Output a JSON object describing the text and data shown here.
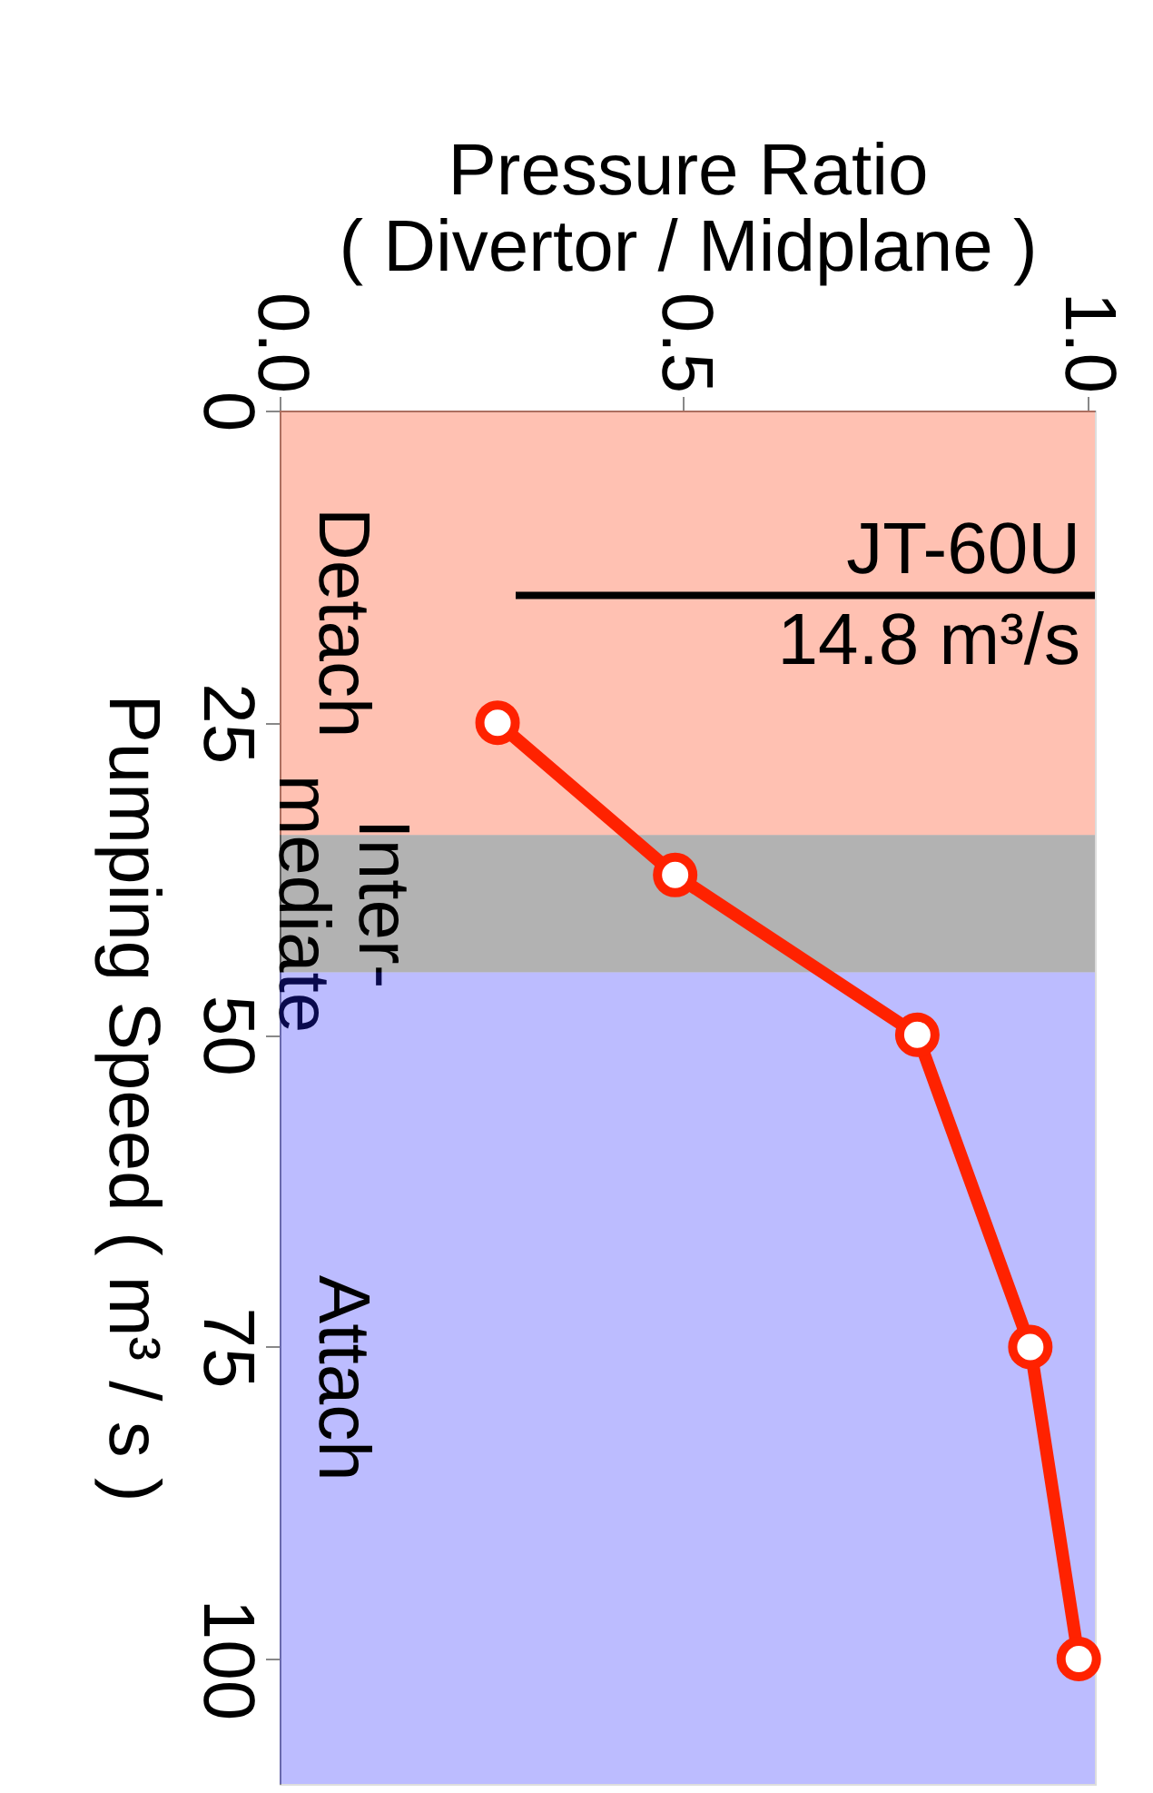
{
  "chart_data": {
    "type": "line",
    "orientation": "horizontal",
    "xlabel": "Pressure Ratio\n( Divertor / Midplane )",
    "ylabel": "Pumping Speed ( m³ / s )",
    "x": [
      25,
      37.2,
      50,
      75,
      100
    ],
    "series": [
      {
        "color": "#ff2200",
        "values": [
          0.27,
          0.49,
          0.79,
          0.93,
          0.99
        ]
      }
    ],
    "marker": "circle",
    "line_style": "solid",
    "xlim": [
      0,
      1.01
    ],
    "xticks": [
      {
        "value": 0,
        "label": "0.0"
      },
      {
        "value": 0.5,
        "label": "0.5"
      },
      {
        "value": 1.0,
        "label": "1.0"
      }
    ],
    "ylim": [
      110,
      0
    ],
    "yticks": [
      0,
      25,
      50,
      75,
      100
    ],
    "ref_lines": [
      {
        "axis": "y",
        "value": 14.8,
        "label": "JT-60U\n14.8 m³/s",
        "color": "#000000"
      }
    ],
    "bands": [
      {
        "axis": "y",
        "from": 0,
        "to": 34,
        "label": "Detach",
        "color": "#ff3300"
      },
      {
        "axis": "y",
        "from": 34,
        "to": 45,
        "label": "Inter-\nmediate",
        "color": "#000000"
      },
      {
        "axis": "y",
        "from": 45,
        "to": 110,
        "label": "Attach",
        "color": "#2020ff"
      }
    ],
    "grid": false
  }
}
